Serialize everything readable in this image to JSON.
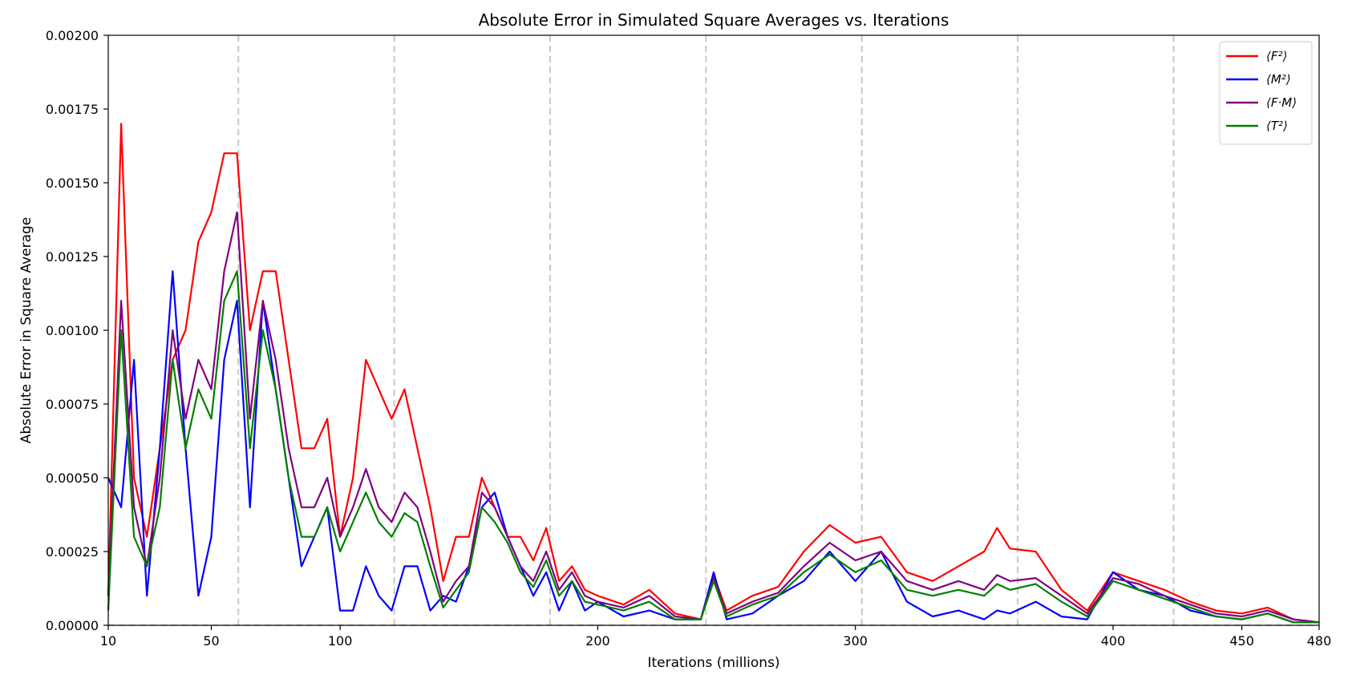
{
  "chart_data": {
    "type": "line",
    "title": "Absolute Error in Simulated Square Averages vs. Iterations",
    "xlabel": "Iterations (millions)",
    "ylabel": "Absolute Error in Square Average",
    "xlim": [
      10,
      480
    ],
    "ylim": [
      0,
      0.002
    ],
    "x_ticks": [
      10,
      50,
      100,
      200,
      300,
      400,
      450,
      480
    ],
    "x_tick_labels": [
      "10",
      "50",
      "100",
      "200",
      "300",
      "400",
      "450",
      "480"
    ],
    "y_ticks": [
      0,
      0.00025,
      0.0005,
      0.00075,
      0.001,
      0.00125,
      0.0015,
      0.00175,
      0.002
    ],
    "y_tick_labels": [
      "0.00000",
      "0.00025",
      "0.00050",
      "0.00075",
      "0.00100",
      "0.00125",
      "0.00150",
      "0.00175",
      "0.00200"
    ],
    "vertical_dashed_lines_x": [
      60.5,
      121,
      181.5,
      242,
      302.5,
      363,
      423.5
    ],
    "horizontal_dashed_line_y": 0,
    "grid": false,
    "legend_position": "top-right",
    "x": [
      10,
      15,
      20,
      25,
      30,
      35,
      40,
      45,
      50,
      55,
      60,
      65,
      70,
      75,
      80,
      85,
      90,
      95,
      100,
      105,
      110,
      115,
      120,
      125,
      130,
      135,
      140,
      145,
      150,
      155,
      160,
      165,
      170,
      175,
      180,
      185,
      190,
      195,
      200,
      210,
      220,
      230,
      240,
      245,
      250,
      260,
      270,
      280,
      290,
      300,
      310,
      320,
      330,
      340,
      350,
      355,
      360,
      370,
      380,
      390,
      400,
      410,
      420,
      430,
      440,
      450,
      460,
      470,
      480
    ],
    "series": [
      {
        "name": "⟨F²⟩",
        "color": "#ff0000",
        "values": [
          0.0001,
          0.0017,
          0.0005,
          0.0003,
          0.0006,
          0.0009,
          0.001,
          0.0013,
          0.0014,
          0.0016,
          0.0016,
          0.001,
          0.0012,
          0.0012,
          0.0009,
          0.0006,
          0.0006,
          0.0007,
          0.0003,
          0.0005,
          0.0009,
          0.0008,
          0.0007,
          0.0008,
          0.0006,
          0.0004,
          0.00015,
          0.0003,
          0.0003,
          0.0005,
          0.0004,
          0.0003,
          0.0003,
          0.00022,
          0.00033,
          0.00015,
          0.0002,
          0.00012,
          0.0001,
          7e-05,
          0.00012,
          4e-05,
          2e-05,
          0.00017,
          5e-05,
          0.0001,
          0.00013,
          0.00025,
          0.00034,
          0.00028,
          0.0003,
          0.00018,
          0.00015,
          0.0002,
          0.00025,
          0.00033,
          0.00026,
          0.00025,
          0.00012,
          5e-05,
          0.00018,
          0.00015,
          0.00012,
          8e-05,
          5e-05,
          4e-05,
          6e-05,
          2e-05,
          1e-05
        ]
      },
      {
        "name": "⟨M²⟩",
        "color": "#0000ff",
        "values": [
          0.0005,
          0.0004,
          0.0009,
          0.0001,
          0.0006,
          0.0012,
          0.0006,
          0.0001,
          0.0003,
          0.0009,
          0.0011,
          0.0004,
          0.0011,
          0.0008,
          0.0005,
          0.0002,
          0.0003,
          0.0004,
          5e-05,
          5e-05,
          0.0002,
          0.0001,
          5e-05,
          0.0002,
          0.0002,
          5e-05,
          0.0001,
          8e-05,
          0.0002,
          0.0004,
          0.00045,
          0.0003,
          0.0002,
          0.0001,
          0.00018,
          5e-05,
          0.00015,
          5e-05,
          8e-05,
          3e-05,
          5e-05,
          2e-05,
          2e-05,
          0.00018,
          2e-05,
          4e-05,
          0.0001,
          0.00015,
          0.00025,
          0.00015,
          0.00025,
          8e-05,
          3e-05,
          5e-05,
          2e-05,
          5e-05,
          4e-05,
          8e-05,
          3e-05,
          2e-05,
          0.00018,
          0.00012,
          0.0001,
          5e-05,
          3e-05,
          2e-05,
          4e-05,
          1e-05,
          1e-05
        ]
      },
      {
        "name": "⟨F·M⟩",
        "color": "#800080",
        "values": [
          0.0001,
          0.0011,
          0.0004,
          0.0002,
          0.0005,
          0.001,
          0.0007,
          0.0009,
          0.0008,
          0.0012,
          0.0014,
          0.0007,
          0.0011,
          0.0009,
          0.0006,
          0.0004,
          0.0004,
          0.0005,
          0.0003,
          0.0004,
          0.00053,
          0.0004,
          0.00035,
          0.00045,
          0.0004,
          0.00025,
          8e-05,
          0.00015,
          0.0002,
          0.00045,
          0.0004,
          0.0003,
          0.0002,
          0.00015,
          0.00025,
          0.00012,
          0.00018,
          0.0001,
          8e-05,
          6e-05,
          0.0001,
          3e-05,
          2e-05,
          0.00016,
          4e-05,
          8e-05,
          0.00011,
          0.0002,
          0.00028,
          0.00022,
          0.00025,
          0.00015,
          0.00012,
          0.00015,
          0.00012,
          0.00017,
          0.00015,
          0.00016,
          0.0001,
          4e-05,
          0.00016,
          0.00014,
          0.0001,
          7e-05,
          4e-05,
          3e-05,
          5e-05,
          2e-05,
          1e-05
        ]
      },
      {
        "name": "⟨T²⟩",
        "color": "#008000",
        "values": [
          5e-05,
          0.001,
          0.0003,
          0.0002,
          0.0004,
          0.0009,
          0.0006,
          0.0008,
          0.0007,
          0.0011,
          0.0012,
          0.0006,
          0.001,
          0.0008,
          0.0005,
          0.0003,
          0.0003,
          0.0004,
          0.00025,
          0.00035,
          0.00045,
          0.00035,
          0.0003,
          0.00038,
          0.00035,
          0.0002,
          6e-05,
          0.00012,
          0.00018,
          0.0004,
          0.00035,
          0.00028,
          0.00018,
          0.00013,
          0.00022,
          0.0001,
          0.00015,
          8e-05,
          7e-05,
          5e-05,
          8e-05,
          2e-05,
          2e-05,
          0.00015,
          3e-05,
          7e-05,
          0.0001,
          0.00018,
          0.00024,
          0.00018,
          0.00022,
          0.00012,
          0.0001,
          0.00012,
          0.0001,
          0.00014,
          0.00012,
          0.00014,
          8e-05,
          3e-05,
          0.00015,
          0.00012,
          9e-05,
          6e-05,
          3e-05,
          2e-05,
          4e-05,
          1e-05,
          1e-05
        ]
      }
    ]
  }
}
